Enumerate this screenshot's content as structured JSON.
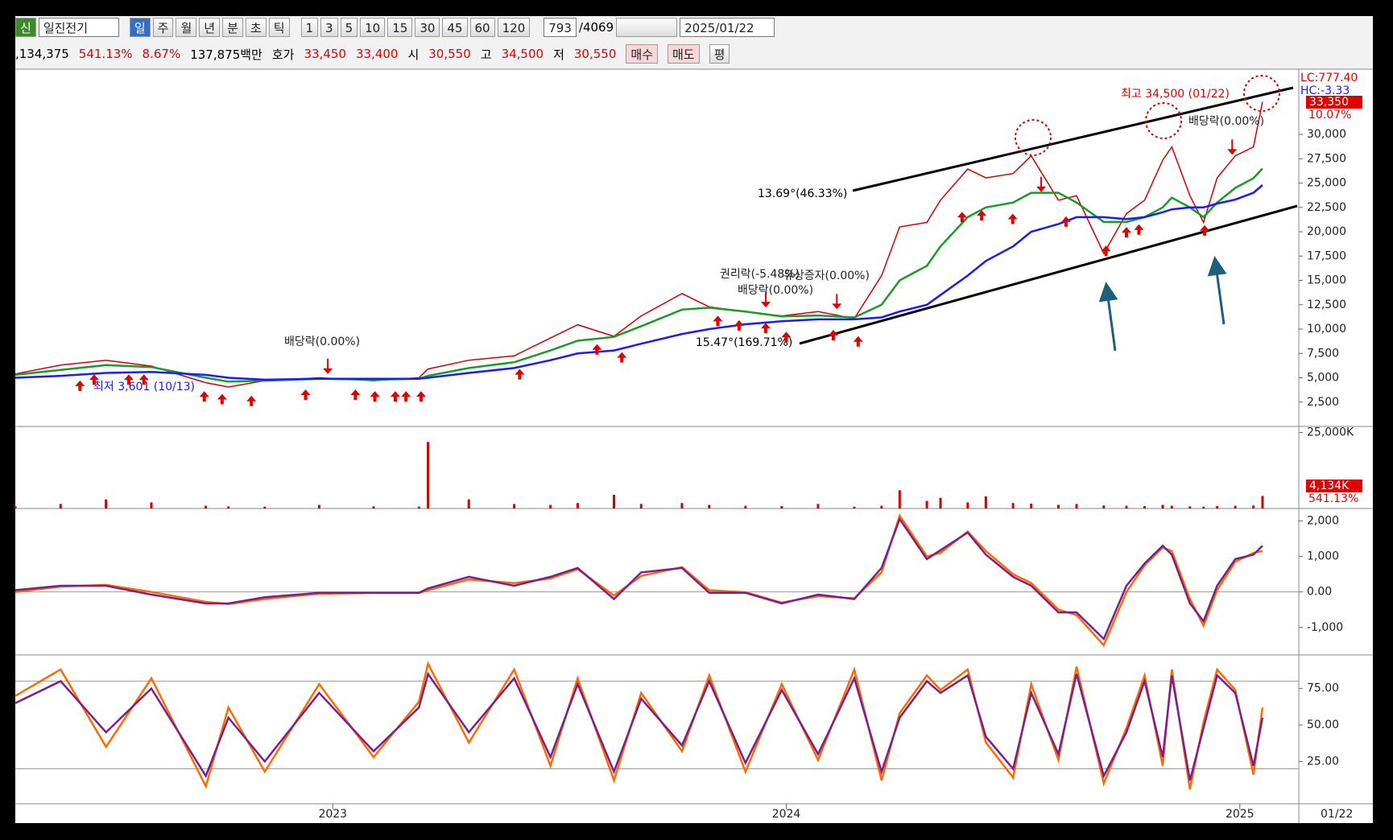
{
  "toolbar": {
    "badge": "신",
    "stock_name": "일진전기",
    "periods": [
      "일",
      "주",
      "월",
      "년",
      "분",
      "초",
      "틱"
    ],
    "intervals": [
      "1",
      "3",
      "5",
      "10",
      "15",
      "30",
      "45",
      "60",
      "120"
    ],
    "count": "793",
    "total": "/4069",
    "date": "2025/01/22"
  },
  "info_bar": {
    "values": [
      ",134,375",
      "541.13%",
      "8.67%",
      "137,875백만"
    ],
    "quotes": [
      {
        "label": "호가",
        "values": [
          "33,450",
          "33,400"
        ]
      },
      {
        "label": "시",
        "values": [
          "30,550"
        ]
      },
      {
        "label": "고",
        "values": [
          "34,500"
        ]
      },
      {
        "label": "저",
        "values": [
          "30,550"
        ]
      }
    ],
    "buttons": [
      "매수",
      "매도",
      "평"
    ]
  },
  "chart_data": [
    {
      "type": "line",
      "x": [
        2022.3,
        2022.4,
        2022.5,
        2022.6,
        2022.72,
        2022.77,
        2022.85,
        2022.97,
        2023.09,
        2023.19,
        2023.21,
        2023.3,
        2023.4,
        2023.48,
        2023.54,
        2023.62,
        2023.68,
        2023.77,
        2023.83,
        2023.91,
        2023.99,
        2024.07,
        2024.15,
        2024.21,
        2024.25,
        2024.31,
        2024.34,
        2024.4,
        2024.44,
        2024.5,
        2024.54,
        2024.6,
        2024.64,
        2024.7,
        2024.75,
        2024.79,
        2024.83,
        2024.85,
        2024.89,
        2024.92,
        2024.95,
        2024.99,
        2025.03,
        2025.05
      ],
      "series": [
        {
          "color": "#d40000",
          "values": [
            5400,
            6300,
            6800,
            6200,
            4500,
            4050,
            4700,
            5000,
            4700,
            5000,
            5900,
            6800,
            7250,
            9080,
            10450,
            9260,
            11360,
            13650,
            12280,
            11800,
            11360,
            11800,
            11090,
            15480,
            20500,
            20960,
            23240,
            26440,
            25530,
            25980,
            27800,
            23240,
            23700,
            17760,
            21870,
            23240,
            27350,
            28720,
            23700,
            20960,
            25530,
            27800,
            28720,
            33350
          ]
        },
        {
          "color": "#1a9a2a",
          "values": [
            5300,
            5800,
            6300,
            6100,
            5000,
            4600,
            4700,
            4900,
            4800,
            4900,
            5200,
            6000,
            6600,
            7800,
            8800,
            9200,
            10300,
            12000,
            12200,
            11800,
            11300,
            11400,
            11200,
            12500,
            15000,
            16500,
            18500,
            21500,
            22500,
            23000,
            24000,
            24000,
            23000,
            21000,
            21000,
            21500,
            22500,
            23500,
            22500,
            21500,
            23000,
            24500,
            25500,
            26500
          ]
        },
        {
          "color": "#1a1aff",
          "values": [
            5000,
            5200,
            5500,
            5600,
            5300,
            5000,
            4800,
            4900,
            4900,
            4900,
            5000,
            5500,
            6000,
            6800,
            7500,
            7800,
            8500,
            9500,
            10000,
            10500,
            10800,
            11000,
            11000,
            11200,
            11800,
            12500,
            13500,
            15500,
            17000,
            18500,
            20000,
            20800,
            21500,
            21500,
            21300,
            21500,
            22000,
            22300,
            22500,
            22500,
            22900,
            23300,
            24000,
            24800
          ]
        }
      ],
      "xlim": [
        2022.3,
        2025.13
      ],
      "ylim": [
        0,
        36700
      ],
      "yticks": [
        {
          "value": 2500,
          "label": "2,500"
        },
        {
          "value": 5000,
          "label": "5,000"
        },
        {
          "value": 7500,
          "label": "7,500"
        },
        {
          "value": 10000,
          "label": "10,000"
        },
        {
          "value": 12500,
          "label": "12,500"
        },
        {
          "value": 15000,
          "label": "15,000"
        },
        {
          "value": 17500,
          "label": "17,500"
        },
        {
          "value": 20000,
          "label": "20,000"
        },
        {
          "value": 22500,
          "label": "22,500"
        },
        {
          "value": 25000,
          "label": "25,000"
        },
        {
          "value": 27500,
          "label": "27,500"
        },
        {
          "value": 30000,
          "label": "30,000"
        }
      ],
      "annotations": [
        "최고 34,500 (01/22)",
        "배당락(0.00%)",
        "13.69°(46.33%)",
        "15.47°(169.71%)",
        "권리락(-5.48%)",
        "유상증자(0.00%)",
        "배당락(0.00%)",
        "배당락(0.00%)",
        "최저 3,601 (10/13)"
      ],
      "axis_labels": {
        "lc": "LC:777.40",
        "hc": "HC:-3.33",
        "last_price": "33,350",
        "change": "10.07%"
      }
    },
    {
      "type": "bar",
      "x": [
        2022.3,
        2022.4,
        2022.5,
        2022.6,
        2022.72,
        2022.77,
        2022.85,
        2022.97,
        2023.09,
        2023.19,
        2023.21,
        2023.3,
        2023.4,
        2023.48,
        2023.54,
        2023.62,
        2023.68,
        2023.77,
        2023.83,
        2023.91,
        2023.99,
        2024.07,
        2024.15,
        2024.21,
        2024.25,
        2024.31,
        2024.34,
        2024.4,
        2024.44,
        2024.5,
        2024.54,
        2024.6,
        2024.64,
        2024.7,
        2024.75,
        2024.79,
        2024.83,
        2024.85,
        2024.89,
        2024.92,
        2024.95,
        2024.99,
        2025.03,
        2025.05
      ],
      "values": [
        800,
        1500,
        3000,
        2000,
        900,
        700,
        600,
        1200,
        700,
        600,
        21900,
        3000,
        1500,
        1200,
        1800,
        4500,
        1500,
        1800,
        1200,
        900,
        800,
        1500,
        600,
        900,
        6000,
        2500,
        3500,
        2000,
        4000,
        1800,
        1600,
        1200,
        1500,
        1000,
        900,
        800,
        1200,
        900,
        700,
        600,
        800,
        900,
        1000,
        4134
      ],
      "color": "#d40000",
      "xlim": [
        2022.3,
        2025.13
      ],
      "ylim": [
        0,
        27000
      ],
      "yticks": [
        {
          "value": 25000,
          "label": "25,000K"
        }
      ],
      "axis_labels": {
        "last_volume": "4,134K",
        "turnover": "541.13%"
      }
    },
    {
      "type": "line",
      "x": [
        2022.3,
        2022.4,
        2022.5,
        2022.6,
        2022.72,
        2022.77,
        2022.85,
        2022.97,
        2023.09,
        2023.19,
        2023.21,
        2023.3,
        2023.4,
        2023.48,
        2023.54,
        2023.62,
        2023.68,
        2023.77,
        2023.83,
        2023.91,
        2023.99,
        2024.07,
        2024.15,
        2024.21,
        2024.25,
        2024.31,
        2024.34,
        2024.4,
        2024.44,
        2024.5,
        2024.54,
        2024.6,
        2024.64,
        2024.7,
        2024.75,
        2024.79,
        2024.83,
        2024.85,
        2024.89,
        2024.92,
        2024.95,
        2024.99,
        2025.03,
        2025.05
      ],
      "series": [
        {
          "color": "#ff6a00",
          "values": [
            0,
            150,
            200,
            0,
            -280,
            -340,
            -200,
            -50,
            -30,
            -30,
            50,
            350,
            250,
            380,
            640,
            -100,
            450,
            700,
            50,
            -10,
            -300,
            -120,
            -180,
            550,
            2150,
            1000,
            1100,
            1700,
            1150,
            500,
            250,
            -500,
            -650,
            -1500,
            0,
            750,
            1250,
            1150,
            -200,
            -950,
            50,
            850,
            1100,
            1150
          ]
        },
        {
          "color": "#7a1f8f",
          "values": [
            50,
            175,
            175,
            -75,
            -325,
            -325,
            -150,
            -25,
            -25,
            -25,
            100,
            425,
            175,
            425,
            675,
            -200,
            550,
            675,
            -25,
            -25,
            -325,
            -75,
            -200,
            675,
            2050,
            925,
            1175,
            1675,
            1050,
            425,
            175,
            -575,
            -575,
            -1325,
            175,
            800,
            1300,
            1050,
            -325,
            -825,
            175,
            925,
            1050,
            1300
          ]
        }
      ],
      "xlim": [
        2022.3,
        2025.13
      ],
      "ylim": [
        -1775,
        2350
      ],
      "yticks": [
        {
          "value": -1000,
          "label": "-1,000"
        },
        {
          "value": 0,
          "label": "0.00"
        },
        {
          "value": 1000,
          "label": "1,000"
        },
        {
          "value": 2000,
          "label": "2,000"
        }
      ],
      "levels": [
        0
      ]
    },
    {
      "type": "line",
      "x": [
        2022.3,
        2022.4,
        2022.5,
        2022.6,
        2022.72,
        2022.77,
        2022.85,
        2022.97,
        2023.09,
        2023.19,
        2023.21,
        2023.3,
        2023.4,
        2023.48,
        2023.54,
        2023.62,
        2023.68,
        2023.77,
        2023.83,
        2023.91,
        2023.99,
        2024.07,
        2024.15,
        2024.21,
        2024.25,
        2024.31,
        2024.34,
        2024.4,
        2024.44,
        2024.5,
        2024.54,
        2024.6,
        2024.64,
        2024.7,
        2024.75,
        2024.79,
        2024.83,
        2024.85,
        2024.89,
        2024.92,
        2024.95,
        2024.99,
        2025.03,
        2025.05
      ],
      "series": [
        {
          "color": "#ff6a00",
          "values": [
            70,
            88,
            35,
            82,
            8,
            62,
            18,
            78,
            28,
            66,
            92,
            38,
            88,
            22,
            82,
            12,
            72,
            32,
            84,
            18,
            78,
            26,
            88,
            12,
            58,
            84,
            74,
            88,
            38,
            14,
            78,
            26,
            90,
            10,
            48,
            84,
            22,
            88,
            6,
            52,
            88,
            74,
            16,
            62
          ]
        },
        {
          "color": "#7a1f8f",
          "values": [
            65,
            80,
            45,
            75,
            15,
            55,
            25,
            72,
            32,
            62,
            85,
            45,
            82,
            28,
            78,
            18,
            68,
            36,
            80,
            24,
            74,
            30,
            82,
            18,
            55,
            80,
            72,
            84,
            42,
            20,
            72,
            30,
            85,
            15,
            45,
            80,
            28,
            84,
            12,
            48,
            84,
            72,
            22,
            55
          ]
        }
      ],
      "xlim": [
        2022.3,
        2025.13
      ],
      "ylim": [
        -4,
        98
      ],
      "yticks": [
        {
          "value": 25,
          "label": "25.00"
        },
        {
          "value": 50,
          "label": "50.00"
        },
        {
          "value": 75,
          "label": "75.00"
        }
      ],
      "levels": [
        20,
        80
      ],
      "xticks": [
        2023,
        2024,
        2025
      ],
      "x_end_label": "01/22"
    }
  ]
}
